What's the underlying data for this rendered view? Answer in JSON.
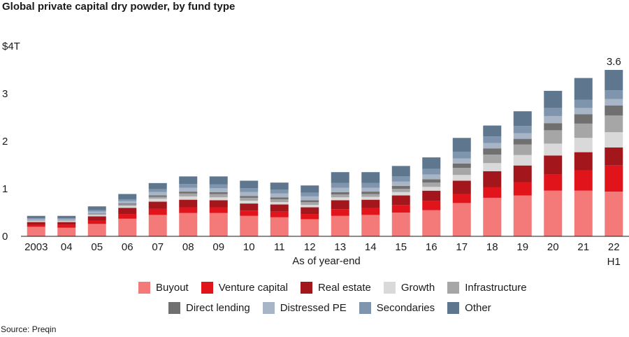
{
  "title": "Global private capital dry powder, by fund type",
  "source": "Source: Preqin",
  "chart_data": {
    "type": "bar",
    "stacked": true,
    "xlabel": "As of year-end",
    "ylabel": "",
    "ylim": [
      0,
      4
    ],
    "yticks": [
      {
        "value": 0,
        "label": "0"
      },
      {
        "value": 1,
        "label": "1"
      },
      {
        "value": 2,
        "label": "2"
      },
      {
        "value": 3,
        "label": "3"
      },
      {
        "value": 4,
        "label": "$4T"
      }
    ],
    "categories": [
      "2003",
      "04",
      "05",
      "06",
      "07",
      "08",
      "09",
      "10",
      "11",
      "12",
      "13",
      "14",
      "15",
      "16",
      "17",
      "18",
      "19",
      "20",
      "21",
      "22"
    ],
    "category_sublabels": {
      "22": "H1"
    },
    "total_annotation": {
      "category": "22",
      "label": "3.6"
    },
    "legend_position": "bottom",
    "series": [
      {
        "name": "Buyout",
        "color": "#f47a7a",
        "values": [
          0.2,
          0.18,
          0.26,
          0.37,
          0.45,
          0.49,
          0.49,
          0.43,
          0.4,
          0.36,
          0.43,
          0.45,
          0.5,
          0.55,
          0.7,
          0.81,
          0.86,
          0.96,
          0.96,
          0.94
        ]
      },
      {
        "name": "Venture capital",
        "color": "#e1141c",
        "values": [
          0.05,
          0.06,
          0.07,
          0.1,
          0.13,
          0.12,
          0.12,
          0.11,
          0.12,
          0.11,
          0.14,
          0.14,
          0.16,
          0.19,
          0.19,
          0.22,
          0.28,
          0.34,
          0.43,
          0.55
        ]
      },
      {
        "name": "Real estate",
        "color": "#a3161c",
        "values": [
          0.05,
          0.06,
          0.09,
          0.13,
          0.15,
          0.16,
          0.15,
          0.15,
          0.15,
          0.14,
          0.19,
          0.18,
          0.2,
          0.22,
          0.28,
          0.34,
          0.35,
          0.4,
          0.38,
          0.38
        ]
      },
      {
        "name": "Growth",
        "color": "#d9d9d9",
        "values": [
          0.02,
          0.02,
          0.03,
          0.04,
          0.06,
          0.07,
          0.06,
          0.06,
          0.05,
          0.05,
          0.06,
          0.06,
          0.07,
          0.08,
          0.12,
          0.17,
          0.22,
          0.25,
          0.3,
          0.32
        ]
      },
      {
        "name": "Infrastructure",
        "color": "#a6a6a6",
        "values": [
          0.01,
          0.01,
          0.02,
          0.03,
          0.04,
          0.06,
          0.07,
          0.06,
          0.06,
          0.06,
          0.06,
          0.06,
          0.07,
          0.09,
          0.15,
          0.18,
          0.22,
          0.28,
          0.3,
          0.35
        ]
      },
      {
        "name": "Direct lending",
        "color": "#707070",
        "values": [
          0.0,
          0.0,
          0.01,
          0.02,
          0.03,
          0.04,
          0.04,
          0.04,
          0.04,
          0.04,
          0.05,
          0.05,
          0.06,
          0.07,
          0.09,
          0.13,
          0.12,
          0.15,
          0.2,
          0.21
        ]
      },
      {
        "name": "Distressed PE",
        "color": "#a7b5c6",
        "values": [
          0.03,
          0.03,
          0.04,
          0.05,
          0.07,
          0.08,
          0.08,
          0.08,
          0.08,
          0.08,
          0.09,
          0.08,
          0.09,
          0.1,
          0.11,
          0.11,
          0.12,
          0.15,
          0.13,
          0.14
        ]
      },
      {
        "name": "Secondaries",
        "color": "#7f95ad",
        "values": [
          0.02,
          0.02,
          0.03,
          0.04,
          0.06,
          0.08,
          0.08,
          0.08,
          0.08,
          0.08,
          0.1,
          0.1,
          0.11,
          0.12,
          0.14,
          0.14,
          0.15,
          0.17,
          0.17,
          0.18
        ]
      },
      {
        "name": "Other",
        "color": "#5e778f",
        "values": [
          0.05,
          0.05,
          0.08,
          0.11,
          0.13,
          0.16,
          0.17,
          0.16,
          0.15,
          0.15,
          0.23,
          0.23,
          0.22,
          0.24,
          0.29,
          0.23,
          0.31,
          0.36,
          0.46,
          0.43
        ]
      }
    ]
  }
}
